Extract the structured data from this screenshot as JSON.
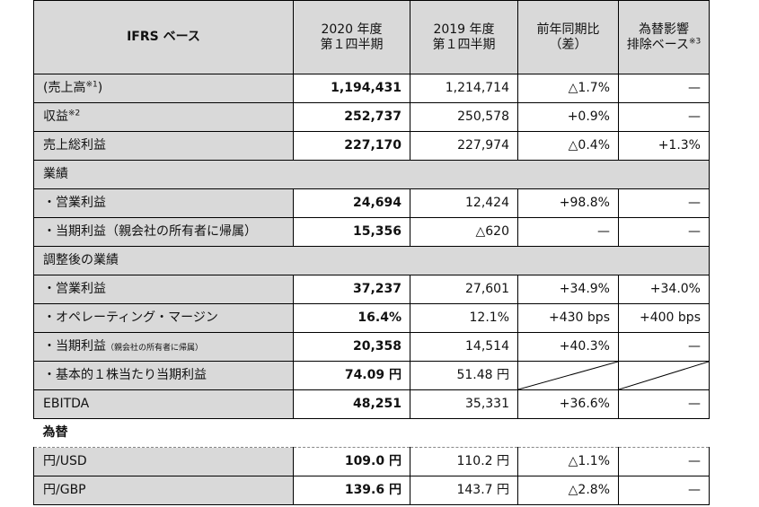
{
  "header": {
    "col0": "IFRS ベース",
    "col1_line1": "2020 年度",
    "col1_line2": "第１四半期",
    "col2_line1": "2019 年度",
    "col2_line2": "第１四半期",
    "col3_line1": "前年同期比",
    "col3_line2": "（差）",
    "col4_line1": "為替影響",
    "col4_line2": "排除ベース",
    "col4_sup": "※3"
  },
  "rows": [
    {
      "label": "(売上高",
      "sup": "※1",
      "suffix": ")",
      "cur": "1,194,431",
      "prev": "1,214,714",
      "yoy": "△1.7%",
      "fx": "—"
    },
    {
      "label": "収益",
      "sup": "※2",
      "cur": "252,737",
      "prev": "250,578",
      "yoy": "+0.9%",
      "fx": "—"
    },
    {
      "label": "売上総利益",
      "cur": "227,170",
      "prev": "227,974",
      "yoy": "△0.4%",
      "fx": "+1.3%"
    },
    {
      "section": "業績"
    },
    {
      "label": "・営業利益",
      "cur": "24,694",
      "prev": "12,424",
      "yoy": "+98.8%",
      "fx": "—"
    },
    {
      "label": "・当期利益（親会社の所有者に帰属）",
      "cur": "15,356",
      "prev": "△620",
      "yoy": "—",
      "fx": "—"
    },
    {
      "section": "調整後の業績"
    },
    {
      "label": "・営業利益",
      "cur": "37,237",
      "prev": "27,601",
      "yoy": "+34.9%",
      "fx": "+34.0%"
    },
    {
      "label": "・オペレーティング・マージン",
      "cur": "16.4%",
      "prev": "12.1%",
      "yoy": "+430 bps",
      "fx": "+400 bps"
    },
    {
      "label": "・当期利益",
      "small": "（親会社の所有者に帰属）",
      "cur": "20,358",
      "prev": "14,514",
      "yoy": "+40.3%",
      "fx": "—"
    },
    {
      "label": "・基本的１株当たり当期利益",
      "cur": "74.09 円",
      "prev": "51.48 円",
      "yoy": "",
      "fx": ""
    },
    {
      "label": "EBITDA",
      "cur": "48,251",
      "prev": "35,331",
      "yoy": "+36.6%",
      "fx": "—"
    },
    {
      "section": "為替"
    },
    {
      "label": "円/USD",
      "cur": "109.0 円",
      "prev": "110.2 円",
      "yoy": "△1.1%",
      "fx": "—"
    },
    {
      "label": "円/GBP",
      "cur": "139.6 円",
      "prev": "143.7 円",
      "yoy": "△2.8%",
      "fx": "—"
    }
  ]
}
